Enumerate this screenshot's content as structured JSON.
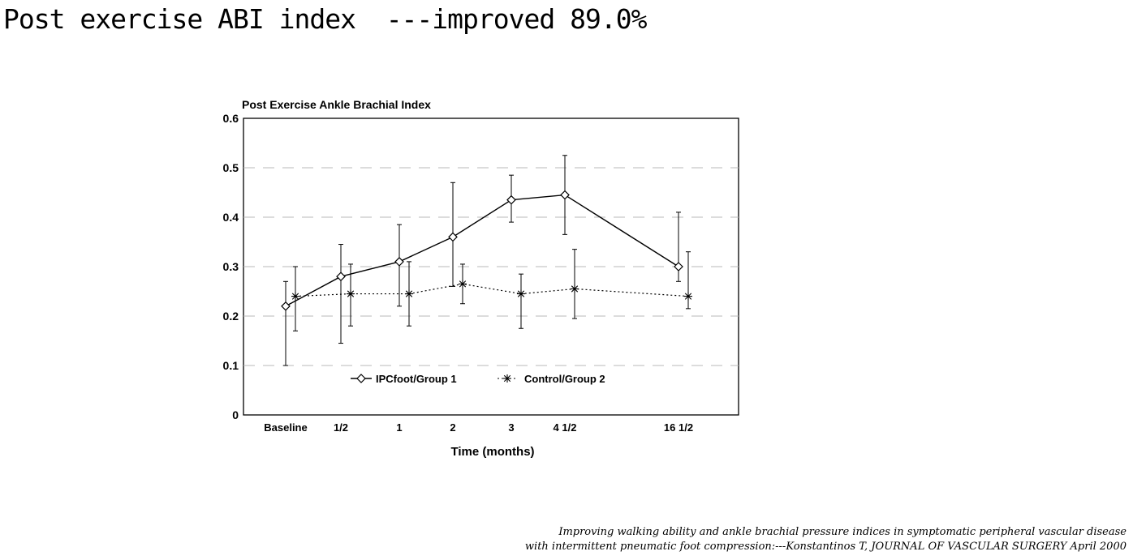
{
  "slide": {
    "title": "Post exercise ABI index  ---improved 89.0%"
  },
  "chart_data": {
    "type": "line",
    "title": "Post Exercise Ankle Brachial Index",
    "xlabel": "Time (months)",
    "ylabel": "",
    "categories": [
      "Baseline",
      "1/2",
      "1",
      "2",
      "3",
      "4 1/2",
      "16 1/2"
    ],
    "ylim": [
      0,
      0.6
    ],
    "yticks": [
      "0",
      "0.1",
      "0.2",
      "0.3",
      "0.4",
      "0.5",
      "0.6"
    ],
    "grid": true,
    "legend_position": "bottom-center",
    "series": [
      {
        "name": "IPCfoot/Group 1",
        "marker": "diamond",
        "line": "solid",
        "values": [
          0.22,
          0.28,
          0.31,
          0.36,
          0.435,
          0.445,
          0.3
        ],
        "error_low": [
          0.1,
          0.145,
          0.22,
          0.26,
          0.39,
          0.365,
          0.27
        ],
        "error_high": [
          0.27,
          0.345,
          0.385,
          0.47,
          0.485,
          0.525,
          0.41
        ]
      },
      {
        "name": "Control/Group 2",
        "marker": "asterisk",
        "line": "dotted",
        "values": [
          0.24,
          0.245,
          0.245,
          0.265,
          0.245,
          0.255,
          0.24
        ],
        "error_low": [
          0.17,
          0.18,
          0.18,
          0.225,
          0.175,
          0.195,
          0.215
        ],
        "error_high": [
          0.3,
          0.305,
          0.31,
          0.305,
          0.285,
          0.335,
          0.33
        ]
      }
    ]
  },
  "citation": {
    "line1": "Improving walking ability and ankle brachial pressure indices in symptomatic peripheral vascular disease",
    "line2": "with intermittent pneumatic foot compression:---Konstantinos T, JOURNAL OF VASCULAR SURGERY April 2000"
  }
}
